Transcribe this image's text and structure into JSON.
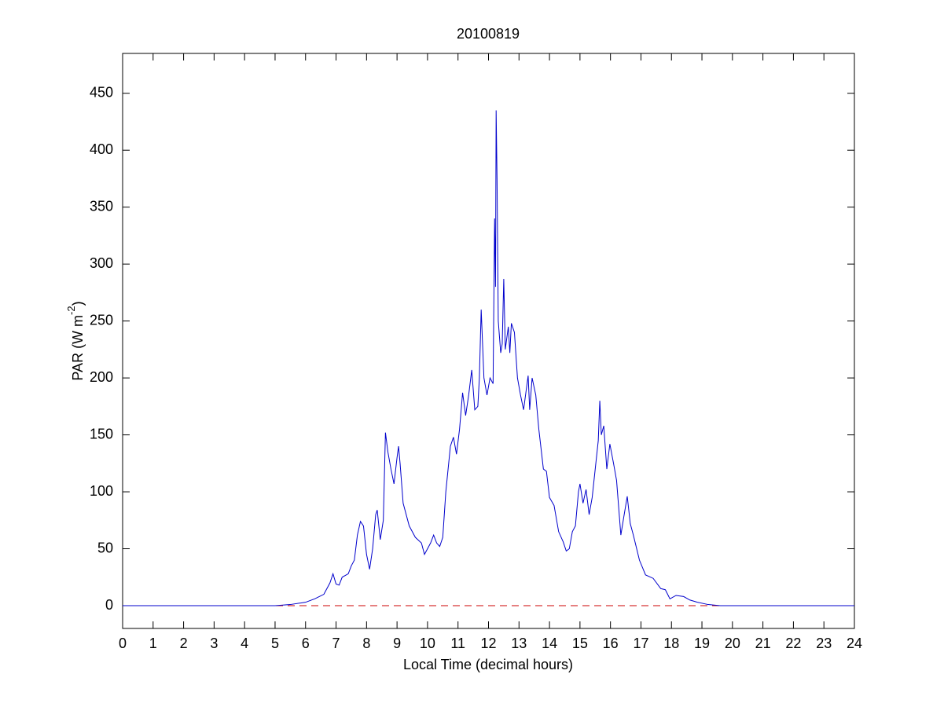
{
  "chart_data": {
    "type": "line",
    "title": "20100819",
    "xlabel": "Local Time (decimal hours)",
    "ylabel_parts": [
      "PAR (W m",
      "-2",
      ")"
    ],
    "xlim": [
      0,
      24
    ],
    "xticks": [
      0,
      1,
      2,
      3,
      4,
      5,
      6,
      7,
      8,
      9,
      10,
      11,
      12,
      13,
      14,
      15,
      16,
      17,
      18,
      19,
      20,
      21,
      22,
      23,
      24
    ],
    "ylim": [
      -20,
      485
    ],
    "yticks": [
      0,
      50,
      100,
      150,
      200,
      250,
      300,
      350,
      400,
      450
    ],
    "reference_line": {
      "value": 0,
      "color": "#cc0000",
      "dashed": true
    },
    "series": [
      {
        "color": "#0000cc",
        "x": [
          0,
          5,
          5.5,
          6,
          6.3,
          6.6,
          6.8,
          6.9,
          7.0,
          7.1,
          7.2,
          7.4,
          7.5,
          7.6,
          7.7,
          7.8,
          7.9,
          8.0,
          8.1,
          8.2,
          8.3,
          8.35,
          8.45,
          8.55,
          8.62,
          8.7,
          8.8,
          8.9,
          9.0,
          9.05,
          9.1,
          9.2,
          9.4,
          9.6,
          9.8,
          9.9,
          10.1,
          10.2,
          10.3,
          10.4,
          10.5,
          10.6,
          10.75,
          10.85,
          10.95,
          11.05,
          11.15,
          11.25,
          11.35,
          11.45,
          11.55,
          11.65,
          11.7,
          11.76,
          11.85,
          11.95,
          12.05,
          12.15,
          12.2,
          12.23,
          12.25,
          12.28,
          12.32,
          12.4,
          12.45,
          12.5,
          12.55,
          12.65,
          12.7,
          12.75,
          12.85,
          12.95,
          13.05,
          13.15,
          13.3,
          13.35,
          13.43,
          13.55,
          13.65,
          13.8,
          13.9,
          14.0,
          14.15,
          14.3,
          14.45,
          14.55,
          14.65,
          14.75,
          14.85,
          14.95,
          15.0,
          15.1,
          15.2,
          15.3,
          15.4,
          15.5,
          15.6,
          15.65,
          15.7,
          15.78,
          15.88,
          15.98,
          16.1,
          16.2,
          16.34,
          16.45,
          16.55,
          16.65,
          16.75,
          16.95,
          17.15,
          17.4,
          17.65,
          17.8,
          17.95,
          18.15,
          18.4,
          18.6,
          18.85,
          19.2,
          19.6,
          24
        ],
        "values": [
          0,
          0,
          1,
          3,
          6,
          10,
          20,
          28,
          19,
          18,
          25,
          28,
          35,
          40,
          62,
          74,
          70,
          45,
          32,
          50,
          80,
          84,
          58,
          75,
          152,
          135,
          120,
          107,
          130,
          140,
          125,
          90,
          70,
          60,
          55,
          45,
          55,
          62,
          55,
          52,
          60,
          100,
          140,
          148,
          133,
          155,
          187,
          167,
          185,
          207,
          172,
          175,
          200,
          260,
          200,
          185,
          200,
          195,
          340,
          280,
          435,
          375,
          250,
          222,
          230,
          287,
          225,
          245,
          222,
          248,
          240,
          200,
          185,
          172,
          202,
          172,
          200,
          185,
          155,
          120,
          118,
          95,
          88,
          65,
          56,
          48,
          50,
          65,
          70,
          100,
          107,
          90,
          102,
          80,
          95,
          120,
          145,
          180,
          150,
          158,
          120,
          142,
          125,
          110,
          62,
          80,
          96,
          72,
          62,
          40,
          27,
          24,
          15,
          14,
          6,
          9,
          8,
          5,
          3,
          1,
          0,
          0
        ]
      }
    ]
  }
}
